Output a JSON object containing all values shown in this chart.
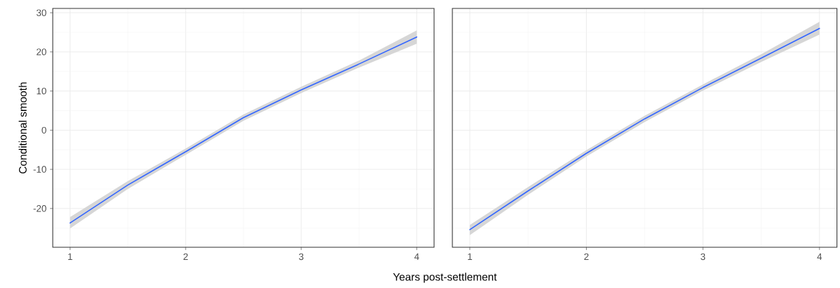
{
  "chart_data": [
    {
      "type": "line",
      "ylabel": "Conditional smooth",
      "xlabel": "Years post-settlement",
      "x": [
        1,
        1.5,
        2,
        2.5,
        3,
        3.5,
        4
      ],
      "series": [
        {
          "color": "#3366ff",
          "values": [
            -23.7,
            -14,
            -5.5,
            3.2,
            10.3,
            16.9,
            23.8
          ],
          "lower": [
            -25.1,
            -15,
            -6.3,
            2.4,
            9.5,
            16,
            22.1
          ],
          "upper": [
            -22.2,
            -13,
            -4.7,
            4,
            11.1,
            17.8,
            25.5
          ]
        }
      ],
      "xlim": [
        0.85,
        4.15
      ],
      "ylim": [
        -29.9,
        31.1
      ],
      "xticks": [
        1,
        2,
        3,
        4
      ],
      "yticks": [
        -20,
        -10,
        0,
        10,
        20,
        30
      ],
      "grid": true
    },
    {
      "type": "line",
      "x": [
        1,
        1.5,
        2,
        2.5,
        3,
        3.5,
        4
      ],
      "series": [
        {
          "color": "#3366ff",
          "values": [
            -25.4,
            -15.5,
            -5.9,
            2.9,
            10.9,
            18.4,
            26
          ],
          "lower": [
            -26.8,
            -16.5,
            -6.7,
            2.1,
            10.1,
            17.4,
            24.4
          ],
          "upper": [
            -24.2,
            -14.5,
            -5.1,
            3.7,
            11.7,
            19.4,
            27.7
          ]
        }
      ],
      "xlim": [
        0.85,
        4.15
      ],
      "ylim": [
        -29.9,
        31.1
      ],
      "xticks": [
        1,
        2,
        3,
        4
      ],
      "yticks": [
        -20,
        -10,
        0,
        10,
        20,
        30
      ],
      "grid": true,
      "tick_labels": "x"
    }
  ]
}
